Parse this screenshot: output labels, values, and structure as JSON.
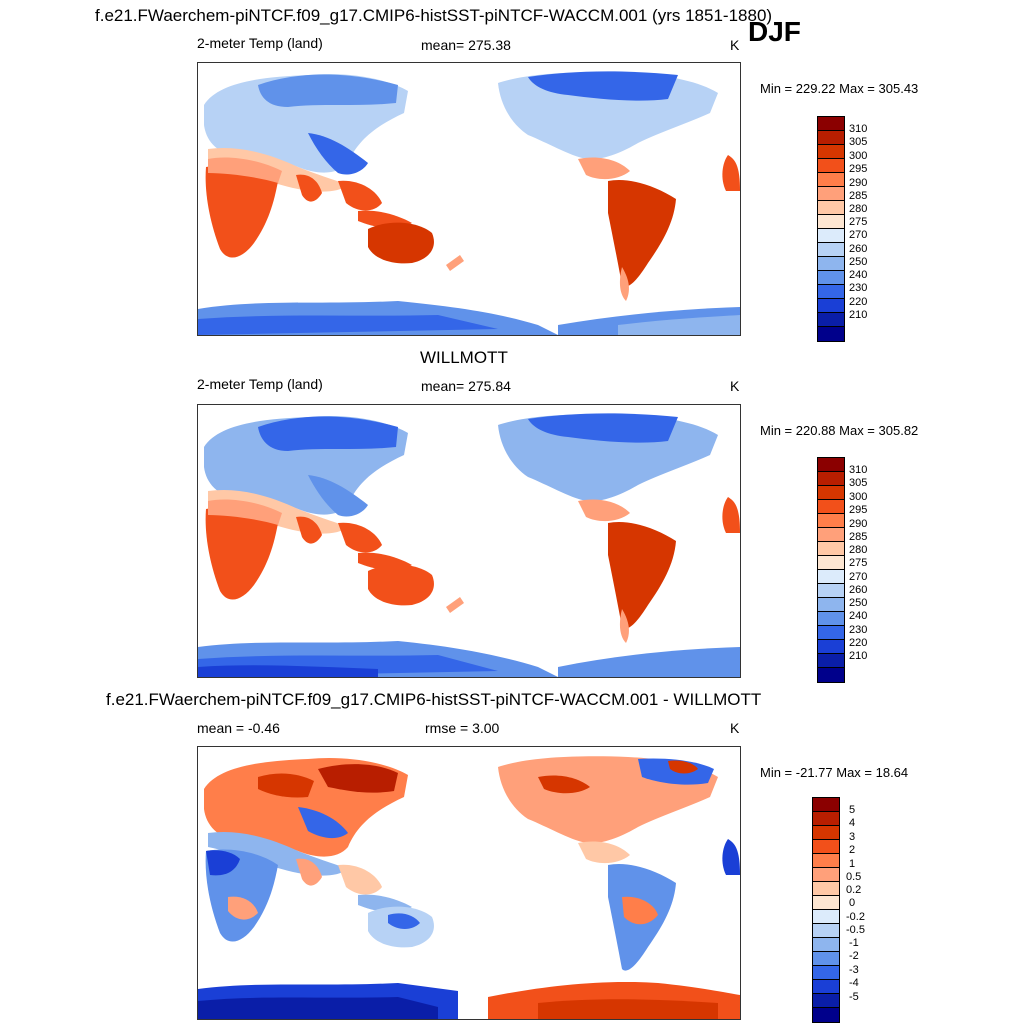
{
  "season": "DJF",
  "panels": [
    {
      "title": "f.e21.FWaerchem-piNTCF.f09_g17.CMIP6-histSST-piNTCF-WACCM.001 (yrs 1851-1880)",
      "left_label": "2-meter Temp (land)",
      "center_label": "mean= 275.38",
      "units": "K",
      "minmax": "Min = 229.22 Max = 305.43"
    },
    {
      "title": "WILLMOTT",
      "left_label": "2-meter Temp (land)",
      "center_label": "mean= 275.84",
      "units": "K",
      "minmax": "Min = 220.88 Max = 305.82"
    },
    {
      "title": "f.e21.FWaerchem-piNTCF.f09_g17.CMIP6-histSST-piNTCF-WACCM.001 - WILLMOTT",
      "left_label": "mean =  -0.46",
      "center_label": "rmse =   3.00",
      "units": "K",
      "minmax": "Min = -21.77 Max =  18.64"
    }
  ],
  "colorbars": {
    "temperature": {
      "labels": [
        "310",
        "305",
        "300",
        "295",
        "290",
        "285",
        "280",
        "275",
        "270",
        "260",
        "250",
        "240",
        "230",
        "220",
        "210"
      ],
      "colors": [
        "#8b0000",
        "#b81e00",
        "#d63600",
        "#f2501a",
        "#ff7e4a",
        "#ffa07a",
        "#ffc8a6",
        "#fde6d2",
        "#dcebfb",
        "#b7d2f5",
        "#8eb5ee",
        "#6092ea",
        "#3466e8",
        "#1a3fd6",
        "#0a1ea8",
        "#00008b"
      ]
    },
    "difference": {
      "labels": [
        "5",
        "4",
        "3",
        "2",
        "1",
        "0.5",
        "0.2",
        "0",
        "-0.2",
        "-0.5",
        "-1",
        "-2",
        "-3",
        "-4",
        "-5"
      ],
      "colors": [
        "#8b0000",
        "#b81e00",
        "#d63600",
        "#f2501a",
        "#ff7e4a",
        "#ffa07a",
        "#ffc8a6",
        "#fde6d2",
        "#dcebfb",
        "#b7d2f5",
        "#8eb5ee",
        "#6092ea",
        "#3466e8",
        "#1a3fd6",
        "#0a1ea8",
        "#00008b"
      ]
    }
  }
}
